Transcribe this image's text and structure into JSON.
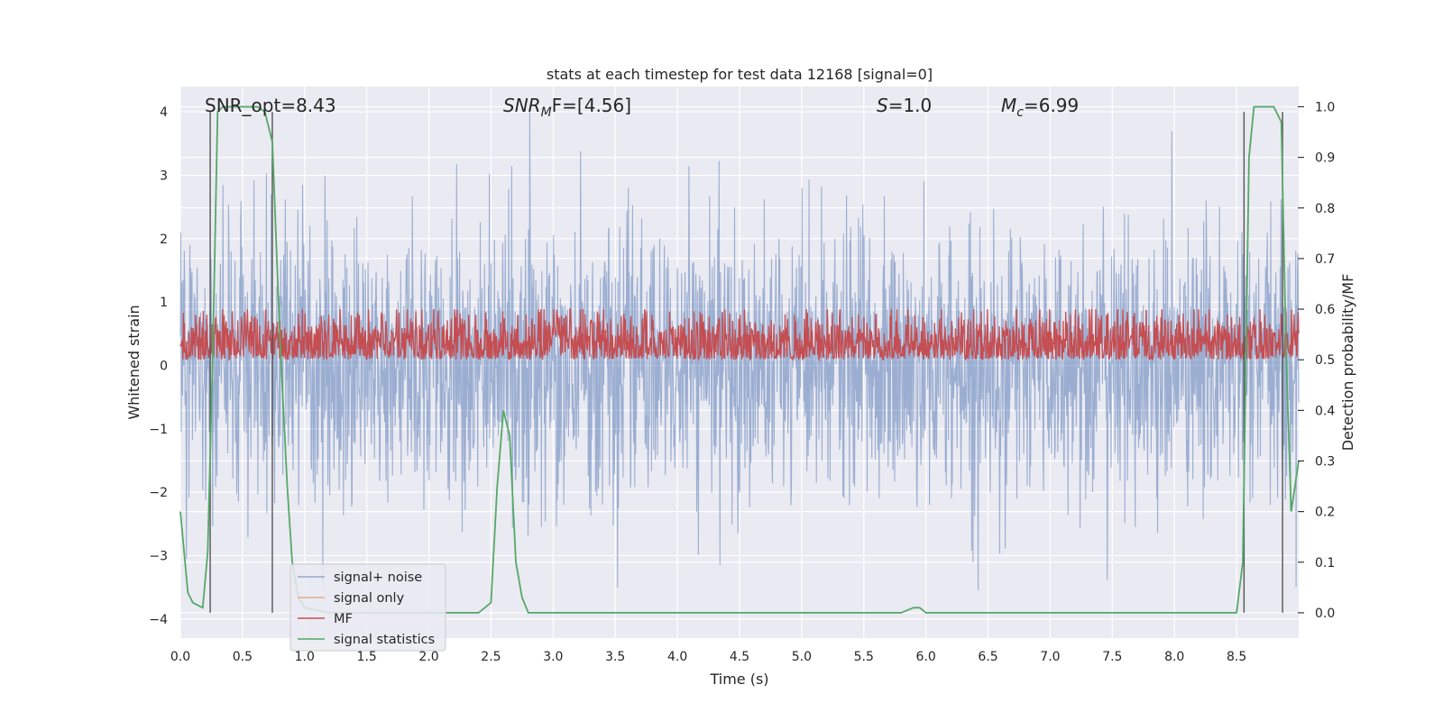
{
  "chart_data": {
    "type": "line",
    "title": "stats at each timestep for test data 12168 [signal=0]",
    "xlabel": "Time (s)",
    "ylabel": "Whitened strain",
    "ylabel_right": "Detection probability/MF",
    "xlim": [
      0.0,
      9.0
    ],
    "ylim": [
      -4.3,
      4.4
    ],
    "ylim_right": [
      -0.05,
      1.04
    ],
    "grid": true,
    "legend_position": "lower left",
    "x_ticks": [
      "0.0",
      "0.5",
      "1.0",
      "1.5",
      "2.0",
      "2.5",
      "3.0",
      "3.5",
      "4.0",
      "4.5",
      "5.0",
      "5.5",
      "6.0",
      "6.5",
      "7.0",
      "7.5",
      "8.0",
      "8.5"
    ],
    "y_ticks": [
      "4",
      "3",
      "2",
      "1",
      "0",
      "−1",
      "−2",
      "−3",
      "−4"
    ],
    "y_right_ticks": [
      "1.0",
      "0.9",
      "0.8",
      "0.7",
      "0.6",
      "0.5",
      "0.4",
      "0.3",
      "0.2",
      "0.1",
      "0.0"
    ],
    "annotations": {
      "snr_opt": "SNR_opt=8.43",
      "snr_mf_main": "SNR",
      "snr_mf_sub": "M",
      "snr_mf_rest": "F=[4.56]",
      "s_main": "S",
      "s_rest": "=1.0",
      "mc_main": "M",
      "mc_sub": "c",
      "mc_rest": "=6.99"
    },
    "vertical_lines_x": [
      0.24,
      0.74,
      8.56,
      8.87
    ],
    "series": [
      {
        "name": "signal+ noise",
        "color": "#4c72b0",
        "description_values": "dense noise approximately between -3.7 and 4.0",
        "peak_positive": 4.0,
        "peak_negative": -3.7
      },
      {
        "name": "signal only",
        "color": "#dd8452",
        "values": []
      },
      {
        "name": "MF",
        "color": "#c44e52",
        "y_range": [
          0.02,
          0.85
        ]
      },
      {
        "name": "signal statistics",
        "color": "#55a868",
        "axis": "right",
        "x": [
          0.0,
          0.06,
          0.1,
          0.18,
          0.22,
          0.26,
          0.3,
          0.34,
          0.45,
          0.55,
          0.62,
          0.68,
          0.74,
          0.8,
          0.86,
          0.9,
          0.95,
          1.0,
          1.2,
          1.5,
          2.0,
          2.4,
          2.5,
          2.55,
          2.6,
          2.65,
          2.7,
          2.75,
          2.8,
          2.9,
          3.5,
          4.5,
          5.5,
          5.8,
          5.9,
          5.95,
          6.0,
          6.1,
          6.5,
          7.5,
          8.3,
          8.5,
          8.55,
          8.6,
          8.64,
          8.7,
          8.8,
          8.86,
          8.9,
          8.94,
          9.0
        ],
        "values": [
          0.2,
          0.04,
          0.02,
          0.01,
          0.12,
          0.5,
          0.99,
          1.0,
          1.0,
          1.0,
          1.0,
          0.99,
          0.93,
          0.55,
          0.25,
          0.1,
          0.03,
          0.01,
          0.0,
          0.0,
          0.0,
          0.0,
          0.02,
          0.25,
          0.4,
          0.35,
          0.1,
          0.03,
          0.0,
          0.0,
          0.0,
          0.0,
          0.0,
          0.0,
          0.01,
          0.01,
          0.0,
          0.0,
          0.0,
          0.0,
          0.0,
          0.0,
          0.1,
          0.9,
          1.0,
          1.0,
          1.0,
          0.97,
          0.5,
          0.2,
          0.3
        ]
      }
    ]
  }
}
